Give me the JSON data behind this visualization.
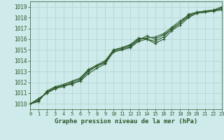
{
  "title": "Graphe pression niveau de la mer (hPa)",
  "background_color": "#ceeaea",
  "grid_color": "#afd4d4",
  "line_color": "#2d5a2d",
  "xlim": [
    0,
    23
  ],
  "ylim": [
    1009.5,
    1019.5
  ],
  "xticks": [
    0,
    1,
    2,
    3,
    4,
    5,
    6,
    7,
    8,
    9,
    10,
    11,
    12,
    13,
    14,
    15,
    16,
    17,
    18,
    19,
    20,
    21,
    22,
    23
  ],
  "yticks": [
    1010,
    1011,
    1012,
    1013,
    1014,
    1015,
    1016,
    1017,
    1018,
    1019
  ],
  "series": [
    [
      1010.0,
      1010.5,
      1011.0,
      1011.5,
      1011.7,
      1011.8,
      1012.2,
      1013.0,
      1013.5,
      1013.8,
      1015.0,
      1015.2,
      1015.5,
      1016.1,
      1016.0,
      1015.8,
      1016.2,
      1017.0,
      1017.5,
      1018.3,
      1018.5,
      1018.6,
      1018.7,
      1018.8
    ],
    [
      1010.0,
      1010.4,
      1011.0,
      1011.4,
      1011.6,
      1011.9,
      1012.1,
      1012.8,
      1013.3,
      1013.7,
      1014.8,
      1015.0,
      1015.2,
      1015.8,
      1016.0,
      1015.6,
      1016.0,
      1016.8,
      1017.3,
      1018.0,
      1018.4,
      1018.5,
      1018.6,
      1018.7
    ],
    [
      1010.0,
      1010.3,
      1011.1,
      1011.5,
      1011.7,
      1012.0,
      1012.3,
      1013.1,
      1013.5,
      1013.9,
      1014.9,
      1015.1,
      1015.3,
      1015.9,
      1016.3,
      1016.0,
      1016.4,
      1016.9,
      1017.5,
      1018.1,
      1018.4,
      1018.5,
      1018.6,
      1018.9
    ],
    [
      1010.0,
      1010.2,
      1011.2,
      1011.6,
      1011.8,
      1012.1,
      1012.4,
      1013.2,
      1013.6,
      1014.0,
      1015.0,
      1015.2,
      1015.4,
      1016.0,
      1016.1,
      1016.2,
      1016.5,
      1017.1,
      1017.7,
      1018.2,
      1018.5,
      1018.6,
      1018.7,
      1019.0
    ]
  ]
}
